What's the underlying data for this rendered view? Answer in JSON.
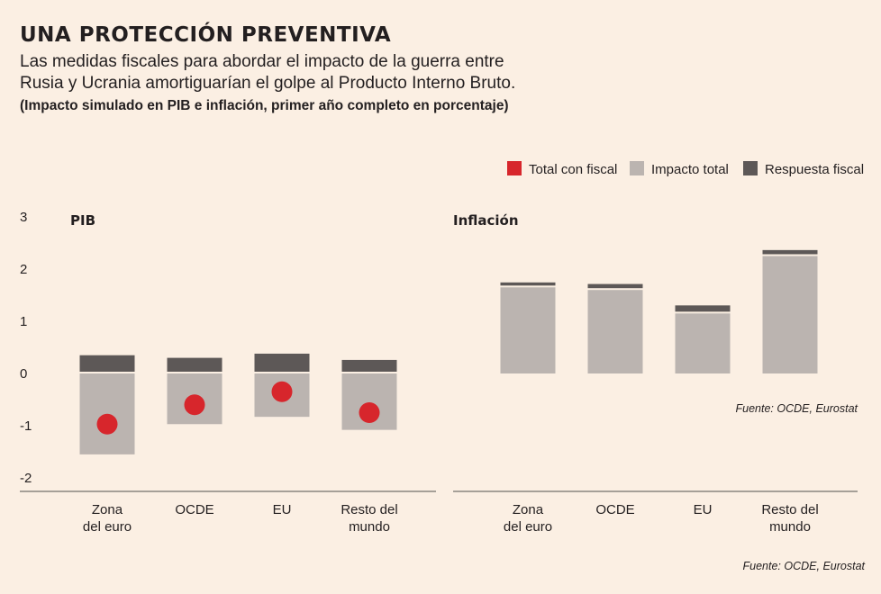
{
  "header": {
    "title": "UNA PROTECCIÓN PREVENTIVA",
    "subtitle_line1": "Las medidas fiscales para abordar el impacto de la guerra entre",
    "subtitle_line2": "Rusia y Ucrania amortiguarían el golpe al Producto Interno Bruto.",
    "note": "(Impacto simulado en PIB e inflación, primer año completo en porcentaje)"
  },
  "legend": {
    "items": [
      {
        "label": "Total con fiscal",
        "color": "#d7262c",
        "shape": "square"
      },
      {
        "label": "Impacto total",
        "color": "#bbb4b0",
        "shape": "square"
      },
      {
        "label": "Respuesta fiscal",
        "color": "#5d5857",
        "shape": "square"
      }
    ],
    "placement": "top-right"
  },
  "sources": {
    "inflation_source": "Fuente: OCDE, Eurostat",
    "footer_source": "Fuente: OCDE, Eurostat"
  },
  "colors": {
    "background": "#fbefe3",
    "impacto_total": "#bbb4b0",
    "respuesta_fiscal": "#5d5857",
    "total_con_fiscal": "#d7262c",
    "axis": "#8a8580"
  },
  "chart_data": [
    {
      "type": "bar",
      "title": "PIB",
      "categories": [
        [
          "Zona",
          "del euro"
        ],
        [
          "OCDE"
        ],
        [
          "EU"
        ],
        [
          "Resto del",
          "mundo"
        ]
      ],
      "ylim": [
        -2,
        3
      ],
      "yticks": [
        "3",
        "2",
        "1",
        "0",
        "-1",
        "-2"
      ],
      "series": [
        {
          "name": "Impacto total",
          "values": [
            -1.55,
            -0.97,
            -0.83,
            -1.08
          ]
        },
        {
          "name": "Respuesta fiscal",
          "values": [
            0.35,
            0.3,
            0.38,
            0.26
          ]
        },
        {
          "name": "Total con fiscal",
          "values": [
            -0.97,
            -0.6,
            -0.35,
            -0.75
          ]
        }
      ]
    },
    {
      "type": "bar",
      "title": "Inflación",
      "categories": [
        [
          "Zona",
          "del euro"
        ],
        [
          "OCDE"
        ],
        [
          "EU"
        ],
        [
          "Resto del",
          "mundo"
        ]
      ],
      "ylim": [
        -2,
        3
      ],
      "series": [
        {
          "name": "Impacto total",
          "values": [
            1.65,
            1.6,
            1.15,
            2.25
          ]
        },
        {
          "name": "Respuesta fiscal",
          "values": [
            0.06,
            0.08,
            0.12,
            0.08
          ]
        }
      ]
    }
  ]
}
